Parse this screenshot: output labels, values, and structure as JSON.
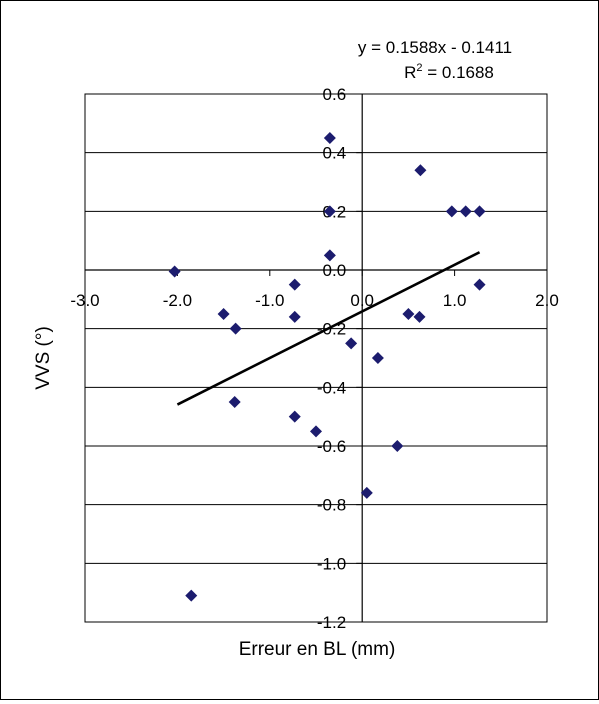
{
  "chart_data": {
    "type": "scatter",
    "title": "",
    "xlabel": "Erreur en BL (mm)",
    "ylabel": "VVS (°)",
    "xlim": [
      -3.0,
      2.0
    ],
    "ylim": [
      -1.2,
      0.6
    ],
    "x_ticks": [
      -3.0,
      -2.0,
      -1.0,
      0.0,
      1.0,
      2.0
    ],
    "x_tick_labels": [
      "-3.0",
      "-2.0",
      "-1.0",
      "0.0",
      "1.0",
      "2.0"
    ],
    "y_ticks": [
      0.6,
      0.4,
      0.2,
      0.0,
      -0.2,
      -0.4,
      -0.6,
      -0.8,
      -1.0,
      -1.2
    ],
    "y_tick_labels": [
      "0.6",
      "0.4",
      "0.2",
      "0.0",
      "-0.2",
      "-0.4",
      "-0.6",
      "-0.8",
      "-1.0",
      "-1.2"
    ],
    "grid": "horizontal",
    "marker": "diamond",
    "marker_color": "#1c1c6e",
    "trendline_color": "#000000",
    "points": [
      {
        "x": -2.03,
        "y": -0.005
      },
      {
        "x": -1.85,
        "y": -1.11
      },
      {
        "x": -1.5,
        "y": -0.15
      },
      {
        "x": -1.37,
        "y": -0.2
      },
      {
        "x": -1.38,
        "y": -0.45
      },
      {
        "x": -0.73,
        "y": -0.05
      },
      {
        "x": -0.73,
        "y": -0.16
      },
      {
        "x": -0.73,
        "y": -0.5
      },
      {
        "x": -0.5,
        "y": -0.55
      },
      {
        "x": -0.35,
        "y": 0.45
      },
      {
        "x": -0.35,
        "y": 0.2
      },
      {
        "x": -0.35,
        "y": 0.05
      },
      {
        "x": -0.12,
        "y": -0.25
      },
      {
        "x": 0.05,
        "y": -0.76
      },
      {
        "x": 0.17,
        "y": -0.3
      },
      {
        "x": 0.38,
        "y": -0.6
      },
      {
        "x": 0.5,
        "y": -0.15
      },
      {
        "x": 0.62,
        "y": -0.16
      },
      {
        "x": 0.63,
        "y": 0.34
      },
      {
        "x": 0.97,
        "y": 0.2
      },
      {
        "x": 1.12,
        "y": 0.2
      },
      {
        "x": 1.27,
        "y": 0.2
      },
      {
        "x": 1.27,
        "y": -0.05
      }
    ],
    "trendline": {
      "x_start": -2.0,
      "x_end": 1.27,
      "slope": 0.1588,
      "intercept": -0.1411
    },
    "equation_label": "y = 0.1588x - 0.1411",
    "r2_prefix": "R",
    "r2_sup": "2",
    "r2_value": " = 0.1688"
  }
}
